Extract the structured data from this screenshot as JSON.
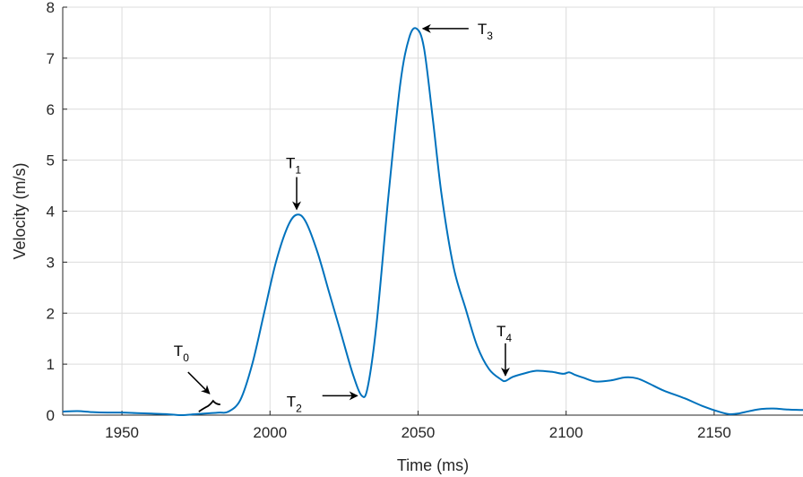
{
  "chart_data": {
    "type": "line",
    "title": "",
    "xlabel": "Time (ms)",
    "ylabel": "Velocity (m/s)",
    "xlim": [
      1930,
      2180
    ],
    "ylim": [
      0,
      8
    ],
    "xticks": [
      1950,
      2000,
      2050,
      2100,
      2150
    ],
    "yticks": [
      0,
      1,
      2,
      3,
      4,
      5,
      6,
      7,
      8
    ],
    "grid": true,
    "line_color": "#0072BD",
    "series": [
      {
        "x": [
          1930,
          1935,
          1940,
          1945,
          1950,
          1955,
          1960,
          1965,
          1970,
          1975,
          1980,
          1983,
          1986,
          1990,
          1994,
          1998,
          2002,
          2006,
          2009,
          2012,
          2016,
          2020,
          2024,
          2028,
          2031,
          2033,
          2036,
          2040,
          2044,
          2047,
          2049.5,
          2052,
          2055,
          2058,
          2062,
          2066,
          2070,
          2074,
          2078,
          2079.5,
          2082,
          2086,
          2090,
          2095,
          2099,
          2101,
          2103,
          2106,
          2110,
          2115,
          2120,
          2124,
          2128,
          2133,
          2140,
          2146,
          2152,
          2155,
          2158,
          2162,
          2166,
          2170,
          2175,
          2180
        ],
        "y": [
          0.07,
          0.08,
          0.06,
          0.05,
          0.05,
          0.04,
          0.03,
          0.02,
          0.0,
          0.02,
          0.04,
          0.05,
          0.07,
          0.3,
          1.0,
          2.0,
          3.0,
          3.7,
          3.93,
          3.8,
          3.2,
          2.4,
          1.6,
          0.8,
          0.38,
          0.55,
          1.8,
          4.3,
          6.5,
          7.4,
          7.58,
          7.2,
          5.8,
          4.3,
          2.9,
          2.1,
          1.35,
          0.9,
          0.7,
          0.67,
          0.75,
          0.82,
          0.87,
          0.85,
          0.81,
          0.84,
          0.79,
          0.73,
          0.66,
          0.68,
          0.74,
          0.72,
          0.62,
          0.48,
          0.33,
          0.18,
          0.06,
          0.02,
          0.03,
          0.08,
          0.12,
          0.13,
          0.11,
          0.1
        ]
      }
    ],
    "annotations": [
      {
        "label": "T",
        "sub": "0",
        "x": 1982,
        "y": 0.28
      },
      {
        "label": "T",
        "sub": "1",
        "x": 2009,
        "y": 3.93
      },
      {
        "label": "T",
        "sub": "2",
        "x": 2031,
        "y": 0.38
      },
      {
        "label": "T",
        "sub": "3",
        "x": 2049.5,
        "y": 7.58
      },
      {
        "label": "T",
        "sub": "4",
        "x": 2079.5,
        "y": 0.67
      }
    ]
  }
}
